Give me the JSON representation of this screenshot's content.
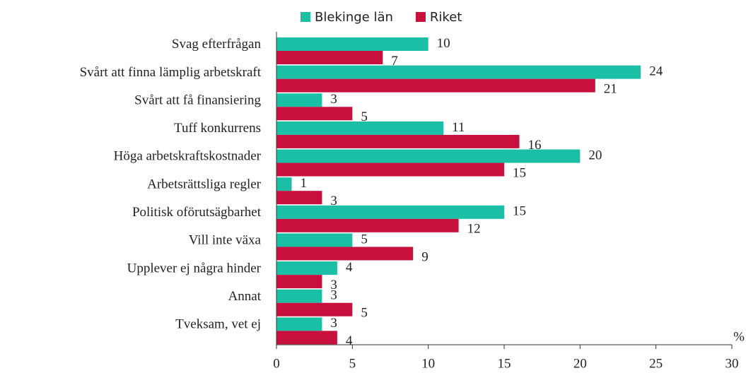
{
  "chart_data": {
    "type": "barh",
    "categories": [
      "Svag efterfrågan",
      "Svårt att finna lämplig arbetskraft",
      "Svårt att få finansiering",
      "Tuff konkurrens",
      "Höga arbetskraftskostnader",
      "Arbetsrättsliga regler",
      "Politisk oförutsägbarhet",
      "Vill inte växa",
      "Upplever ej några hinder",
      "Annat",
      "Tveksam, vet ej"
    ],
    "series": [
      {
        "name": "Blekinge län",
        "color": "#1abfa5",
        "values": [
          10,
          24,
          3,
          11,
          20,
          1,
          15,
          5,
          4,
          3,
          3
        ]
      },
      {
        "name": "Riket",
        "color": "#c8103e",
        "values": [
          7,
          21,
          5,
          16,
          15,
          3,
          12,
          9,
          3,
          5,
          4
        ]
      }
    ],
    "xlabel": "%",
    "xlim": [
      0,
      30
    ],
    "xticks": [
      0,
      5,
      10,
      15,
      20,
      25,
      30
    ],
    "legend": "top"
  }
}
